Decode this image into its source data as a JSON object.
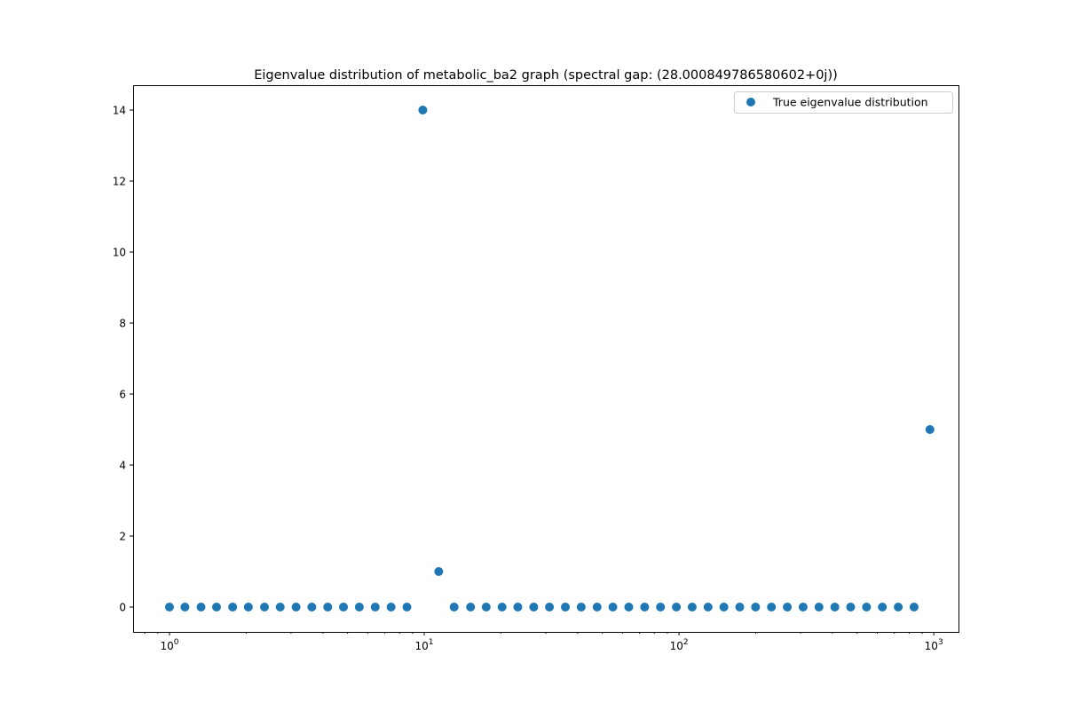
{
  "chart_data": {
    "type": "scatter",
    "title": "Eigenvalue distribution of metabolic_ba2 graph (spectral gap: (28.000849786580602+0j))",
    "xlabel": "",
    "ylabel": "",
    "xscale": "log",
    "xlim": [
      0.72,
      1250
    ],
    "ylim": [
      -0.7,
      14.7
    ],
    "grid": false,
    "legend_position": "top-right",
    "color": "#1f77b4",
    "xticks": [
      {
        "value": 1,
        "base": "10",
        "exp": "0"
      },
      {
        "value": 10,
        "base": "10",
        "exp": "1"
      },
      {
        "value": 100,
        "base": "10",
        "exp": "2"
      },
      {
        "value": 1000,
        "base": "10",
        "exp": "3"
      }
    ],
    "yticks": [
      0,
      2,
      4,
      6,
      8,
      10,
      12,
      14
    ],
    "series": [
      {
        "name": "True eigenvalue distribution",
        "x": [
          1.0,
          1.15,
          1.33,
          1.53,
          1.77,
          2.04,
          2.36,
          2.72,
          3.14,
          3.62,
          4.18,
          4.82,
          5.56,
          6.42,
          7.41,
          8.55,
          9.87,
          11.4,
          13.1,
          15.2,
          17.5,
          20.2,
          23.3,
          26.9,
          31.0,
          35.8,
          41.3,
          47.7,
          55.0,
          63.5,
          73.3,
          84.6,
          97.6,
          112.6,
          130.0,
          150.0,
          173.1,
          199.7,
          230.5,
          266.0,
          306.9,
          354.2,
          408.8,
          471.7,
          544.4,
          628.2,
          725.0,
          836.7,
          965.6
        ],
        "y": [
          0,
          0,
          0,
          0,
          0,
          0,
          0,
          0,
          0,
          0,
          0,
          0,
          0,
          0,
          0,
          0,
          14,
          1,
          0,
          0,
          0,
          0,
          0,
          0,
          0,
          0,
          0,
          0,
          0,
          0,
          0,
          0,
          0,
          0,
          0,
          0,
          0,
          0,
          0,
          0,
          0,
          0,
          0,
          0,
          0,
          0,
          0,
          0,
          5
        ]
      }
    ]
  }
}
